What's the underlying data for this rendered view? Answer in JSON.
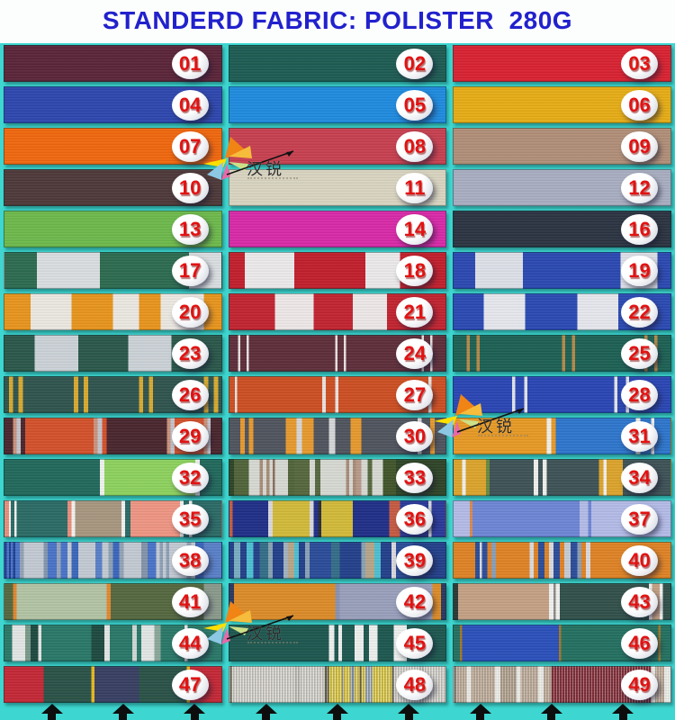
{
  "title": "STANDERD FABRIC: POLISTER  280G",
  "title_color": "#2121cd",
  "background_color": "#3ed6d0",
  "badge_number_color": "#e21212",
  "watermark": {
    "brand": "汉锐"
  },
  "bottom_arrows": {
    "count": 9,
    "color": "#0d0d0d"
  },
  "swatches": [
    {
      "num": "01",
      "desc": "dark-plum",
      "bg": "#5b2438"
    },
    {
      "num": "02",
      "desc": "dark-teal",
      "bg": "#1e5c53"
    },
    {
      "num": "03",
      "desc": "red",
      "bg": "#d92231"
    },
    {
      "num": "04",
      "desc": "royal-blue",
      "bg": "#2e47af"
    },
    {
      "num": "05",
      "desc": "bright-blue",
      "bg": "#1f8bdf"
    },
    {
      "num": "06",
      "desc": "golden-yellow",
      "bg": "#e6ad16"
    },
    {
      "num": "07",
      "desc": "orange",
      "bg": "#f1670e"
    },
    {
      "num": "08",
      "desc": "crimson",
      "bg": "#c74050"
    },
    {
      "num": "09",
      "desc": "tan",
      "bg": "#b18f78"
    },
    {
      "num": "10",
      "desc": "dark-brown",
      "bg": "#4e3939"
    },
    {
      "num": "11",
      "desc": "cream",
      "bg": "#d9d5c1"
    },
    {
      "num": "12",
      "desc": "silver-grey",
      "bg": "#a9aec1"
    },
    {
      "num": "13",
      "desc": "apple-green",
      "bg": "#6eb94c"
    },
    {
      "num": "14",
      "desc": "magenta",
      "bg": "#d92aa9"
    },
    {
      "num": "16",
      "desc": "dark-navy",
      "bg": "#2b3441"
    },
    {
      "num": "17",
      "desc": "green-white-blocks",
      "bg": "linear-gradient(90deg,#2c6b50 0 15%,#dadee0 15% 44%,#2c6b50 44% 85%,#dadee0 85% 100%)"
    },
    {
      "num": "18",
      "desc": "red-white-blocks",
      "bg": "linear-gradient(90deg,#c21f2c 0 7%,#eceaea 7% 30%,#c21f2c 30% 63%,#eceaea 63% 79%,#c21f2c 79% 100%)"
    },
    {
      "num": "19",
      "desc": "blue-white-blocks",
      "bg": "linear-gradient(90deg,#2b49b2 0 10%,#dde0e8 10% 32%,#2b49b2 32% 77%,#dde0e8 77% 94%,#2b49b2 94% 100%)"
    },
    {
      "num": "20",
      "desc": "orange-white-stripes",
      "bg": "linear-gradient(90deg,#e8951d 0 12%,#ece8e2 12% 31%,#e8951d 31% 50%,#ece8e2 50% 62%,#e8951d 62% 72%,#ece8e2 72% 92%,#e8951d 92% 100%)"
    },
    {
      "num": "21",
      "desc": "red-white-stripes",
      "bg": "linear-gradient(90deg,#c22430 0 21%,#eee8e8 21% 39%,#c22430 39% 57%,#eee8e8 57% 73%,#c22430 73% 100%)"
    },
    {
      "num": "22",
      "desc": "blue-white-stripes",
      "bg": "linear-gradient(90deg,#2b4ab4 0 14%,#e6e8ee 14% 33%,#2b4ab4 33% 57%,#e6e8ee 57% 76%,#2b4ab4 76% 100%)"
    },
    {
      "num": "23",
      "desc": "green-white-blocks",
      "bg": "linear-gradient(90deg,#2a574a 0 14%,#ccd3d8 14% 34%,#2a574a 34% 57%,#ccd3d8 57% 77%,#2a574a 77% 100%)"
    },
    {
      "num": "24",
      "desc": "maroon-white-pinstripes",
      "bg": "linear-gradient(90deg,#5e2e3a 0 4%,#e8e2e4 4% 5%,#5e2e3a 5% 8%,#e8e2e4 8% 9%,#5e2e3a 9% 49%,#e8e2e4 49% 50%,#5e2e3a 50% 53%,#e8e2e4 53% 54%,#5e2e3a 54% 89%,#e8e2e4 89% 90%,#5e2e3a 90% 93%,#e8e2e4 93% 94%,#5e2e3a 94% 100%)"
    },
    {
      "num": "25",
      "desc": "teal-gold-pinstripes",
      "bg": "linear-gradient(90deg,#1d6154 0 6%,#b68948 6% 7.5%,#1d6154 7.5% 10.5%,#b68948 10.5% 12%,#1d6154 12% 50%,#b68948 50% 51.5%,#1d6154 51.5% 54.5%,#b68948 54.5% 56%,#1d6154 56% 88%,#b68948 88% 89.5%,#1d6154 89.5% 92.5%,#b68948 92.5% 94%,#1d6154 94% 100%)"
    },
    {
      "num": "26",
      "desc": "pine-yellow-pinstripes",
      "bg": "linear-gradient(90deg,#2f544e 0 2%,#d8aa30 2% 4%,#2f544e 4% 6.5%,#d8aa30 6.5% 8.5%,#2f544e 8.5% 32%,#d8aa30 32% 34%,#2f544e 34% 36.5%,#d8aa30 36.5% 38.5%,#2f544e 38.5% 62%,#d8aa30 62% 64%,#2f544e 64% 66.5%,#d8aa30 66.5% 68.5%,#2f544e 68.5% 92%,#d8aa30 92% 94%,#2f544e 94% 96.5%,#d8aa30 96.5% 98.5%,#2f544e 98.5% 100%)"
    },
    {
      "num": "27",
      "desc": "rust-white-pinstripes",
      "bg": "linear-gradient(90deg,#cd4f23 0 2.5%,#e8e4e0 2.5% 3.5%,#cd4f23 3.5% 43%,#e8e4e0 43% 44.5%,#cd4f23 44.5% 49%,#e8e4e0 49% 50.5%,#cd4f23 50.5% 92%,#e8e4e0 92% 93.5%,#cd4f23 93.5% 100%)"
    },
    {
      "num": "28",
      "desc": "royal-blue-white-pinstripes",
      "bg": "linear-gradient(90deg,#2a46b4 0 27%,#e2e4ea 27% 28.5%,#2a46b4 28.5% 32.5%,#e2e4ea 32.5% 34%,#2a46b4 34% 74%,#e2e4ea 74% 75.5%,#2a46b4 75.5% 79.5%,#e2e4ea 79.5% 81%,#2a46b4 81% 100%)"
    },
    {
      "num": "29",
      "desc": "rust-maroon-blocks",
      "bg": "linear-gradient(90deg,#4a262e 0 4%,#c9937c 4% 5.5%,#c3c3cb 5.5% 7.5%,#4a262e 7.5% 9.5%,#d4512b 9.5% 41%,#c9937c 41% 43%,#c3c3cb 43% 45%,#d4512b 45% 47%,#4a262e 47% 75%,#c9937c 75% 76.5%,#c3c3cb 76.5% 78.5%,#d4512b 78.5% 92%,#c9937c 92% 93.5%,#c3c3cb 93.5% 95%,#4a262e 95% 100%)"
    },
    {
      "num": "30",
      "desc": "grey-orange-stripes",
      "bg": "linear-gradient(90deg,#50545e 0 5%,#e79a2e 5% 7%,#50545e 7% 9%,#e79a2e 9% 11%,#50545e 11% 26%,#e79a2e 26% 31%,#d6d6d8 31% 33.5%,#e79a2e 33.5% 39%,#50545e 39% 46%,#d6d6d8 46% 49%,#50545e 49% 56%,#e79a2e 56% 61%,#50545e 61% 87%,#d6d6d8 87% 89%,#50545e 89% 93%,#e79a2e 93% 95%,#50545e 95% 100%)"
    },
    {
      "num": "31",
      "desc": "orange-blue-blocks",
      "bg": "linear-gradient(90deg,#e89a25 0 43%,#f0f0ec 43% 45%,#e89a25 45% 47%,#2d76cc 47% 84%,#f0f0ec 84% 86%,#2d76cc 86% 91%,#f0f0ec 91% 92.5%,#2d76cc 92.5% 100%)"
    },
    {
      "num": "32",
      "desc": "teal-lime-blocks",
      "bg": "linear-gradient(90deg,#21695c 0 44%,#f0f2ee 44% 46%,#8ed25f 46% 88%,#f0f2ee 88% 90%,#21695c 90% 100%)"
    },
    {
      "num": "33",
      "desc": "olive-white-brown-stripes",
      "bg": "linear-gradient(90deg,#2e4427 0 2%,#51643a 2% 9%,#d7d9d3 9% 14%,#a98c79 14% 15.5%,#d7d9d3 15.5% 17%,#a98c79 17% 18.5%,#d7d9d3 18.5% 20%,#8a6e5e 20% 21%,#d7d9d3 21% 27%,#51643a 27% 30%,#56683e 30% 37%,#d7d9d3 37% 39.5%,#56683e 39.5% 42%,#d7d9d3 42% 54%,#a98c79 54% 55.5%,#d7d9d3 55.5% 57%,#a98c79 57% 58.5%,#b89a8a 58.5% 61%,#d7d9d3 61% 64%,#56683e 64% 66%,#d7d9d3 66% 71%,#41552b 71% 77%,#2e4427 77% 100%)"
    },
    {
      "num": "34",
      "desc": "slate-amber-stripes",
      "bg": "linear-gradient(90deg,#dca42c 0 4%,#f0f0ec 4% 5.5%,#dca42c 5.5% 15%,#6a8a40 15% 16.5%,#3e5256 16.5% 37%,#f0f0ec 37% 39%,#3e5256 39% 41%,#f0f0ec 41% 43%,#3e5256 43% 67%,#dca42c 67% 69%,#f0f0ec 69% 70.5%,#dca42c 70.5% 78%,#3e5256 78% 100%)"
    },
    {
      "num": "35",
      "desc": "teal-salmon-tan-blocks",
      "bg": "linear-gradient(90deg,#e98f7c 0 2%,#f2f2f0 2% 3%,#2b6a66 3% 4.5%,#f2f2f0 4.5% 5.5%,#2b6a66 5.5% 29%,#e98f7c 29% 31%,#f2f2f0 31% 32.5%,#a89780 32.5% 54%,#f2f2f0 54% 55.5%,#2b6a66 55.5% 58%,#ef9684 58% 81%,#f2f2f0 81% 82.5%,#2b6a66 82.5% 85%,#f2f2f0 85% 86.5%,#2b6a66 86.5% 100%)"
    },
    {
      "num": "36",
      "desc": "navy-yellow-blocks",
      "bg": "linear-gradient(90deg,#c65b42 0 1.5%,#202f88 1.5% 18%,#d8d8dc 18% 20%,#d3ba3a 20% 37%,#d8d8dc 37% 39%,#202f88 39% 41%,#2c2c34 41% 42.5%,#d3ba3a 42.5% 57%,#202f88 57% 74%,#c65b42 74% 79%,#2a3a9a 79% 92%,#d8d8dc 92% 93.5%,#2a3a9a 93.5% 100%)"
    },
    {
      "num": "37",
      "desc": "periwinkle-blocks",
      "bg": "linear-gradient(90deg,#b4bce8 0 7.5%,#d88a50 7.5% 8.7%,#6e86d6 8.7% 58%,#b4bce8 58% 62%,#6e86d6 62% 63.5%,#b4bce8 63.5% 100%)"
    },
    {
      "num": "38",
      "desc": "blue-grey-multistripe",
      "bg": "linear-gradient(90deg,#1f3f90 0 1%,#4a74c8 1% 2%,#1f3f90 2% 3%,#4a74c8 3% 4%,#1f3f90 4% 5%,#4a74c8 5% 7%,#94a2b6 7% 9%,#c3cad3 9% 18%,#8396ae 18% 20%,#4a74c8 20% 24%,#97a6ba 24% 26%,#4a74c8 26% 29%,#c3cad3 29% 31%,#3a66bc 31% 34%,#c3cad3 34% 42%,#5a80c8 42% 45%,#c3cad3 45% 48%,#8ea0b6 48% 50%,#3a66bc 50% 53%,#93a2b6 53% 55%,#c3cad3 55% 63%,#8494a8 63% 66%,#4a74c8 66% 70%,#c3cad3 70% 71.5%,#8ea0b6 71.5% 73%,#c3cad3 73% 74.5%,#8ea0b6 74.5% 76%,#c3cad3 76% 84%,#95a4b8 84% 86%,#c3cad3 86% 88%,#3a66bc 88% 92%,#5a80c8 92% 100%)"
    },
    {
      "num": "39",
      "desc": "navy-aqua-multistripe",
      "bg": "linear-gradient(90deg,#23408a 0 2%,#79aec2 2% 5%,#23408a 5% 8%,#4cc0d2 8% 11%,#23408a 11% 14%,#346e88 14% 18%,#88a2b2 18% 20%,#23408a 20% 25%,#a2b2be 25% 27%,#b6a68a 27% 30%,#4cc0d2 30% 32%,#23408a 32% 35%,#8aa2b6 35% 37%,#2b4c9a 37% 47%,#346e88 47% 51%,#23408a 51% 61%,#8aa2b6 61% 63%,#b6a68a 63% 67%,#4cc0d2 67% 70%,#23408a 70% 75%,#dadade 75% 77%,#2b4c9a 77% 85%,#23408a 85% 100%)"
    },
    {
      "num": "40",
      "desc": "orange-blue-multistripe",
      "bg": "linear-gradient(90deg,#df8326 0 10%,#2b4d9a 10% 12%,#dadade 12% 13%,#2b4d9a 13% 15.5%,#df8326 15.5% 17.5%,#8a9eb6 17.5% 19.5%,#df8326 19.5% 35%,#dadade 35% 37%,#df8326 37% 39%,#2b4d9a 39% 42%,#df8326 42% 44%,#dadade 44% 46%,#2b4d9a 46% 49%,#df8326 49% 51%,#c6ccd4 51% 54%,#2b4d9a 54% 57%,#8a9eb6 57% 59%,#df8326 59% 61%,#dadade 61% 63%,#df8326 63% 100%)"
    },
    {
      "num": "41",
      "desc": "olive-sage-blocks",
      "bg": "linear-gradient(90deg,#55683f 0 4%,#e08830 4% 5.5%,#b3c4a4 5.5% 47%,#e08830 47% 49%,#55683f 49% 92%,#8a9a8c 92% 100%)"
    },
    {
      "num": "42",
      "desc": "orange-greyblue-blocks",
      "bg": "linear-gradient(90deg,#2c3860 0 2%,#dd8c28 2% 49%,#8a92b0 49% 51%,#9aa0bc 51% 94%,#dd8c28 94% 98%,#2c3860 98% 100%)"
    },
    {
      "num": "43",
      "desc": "tan-darkteal-blocks",
      "bg": "linear-gradient(90deg,#2c3834 0 2%,#c4a185 2% 44%,#f0f0ee 44% 46%,#8a8a88 46% 47%,#f0f0ee 47% 49%,#31504a 49% 90%,#f0f0ee 90% 91.5%,#c4a185 91.5% 95%,#f0f0ee 95% 96.5%,#31504a 96.5% 100%)"
    },
    {
      "num": "44",
      "desc": "teal-white-stripes",
      "bg": "linear-gradient(90deg,#2a7868 0 3.5%,#e2e6e4 3.5% 9.5%,#7a9a8a 9.5% 12%,#1d4a40 12% 15.5%,#e2e6e4 15.5% 17%,#2a7868 17% 40%,#1d4a40 40% 46%,#e2e6e4 46% 48.5%,#2a7868 48.5% 59%,#cfd8d4 59% 61%,#2a7868 61% 63%,#e2e6e4 63% 69%,#8aa89a 69% 72%,#2a7868 72% 83%,#e2e6e4 83% 84.5%,#2a7868 84.5% 100%)"
    },
    {
      "num": "45",
      "desc": "darkteal-white-stripes",
      "bg": "linear-gradient(90deg,#1d5850 0 46%,#eef0ee 46% 48.5%,#1d5850 48.5% 50.5%,#eef0ee 50.5% 52%,#1d5850 52% 58%,#eef0ee 58% 62%,#1d5850 62% 64.5%,#eef0ee 64.5% 68.5%,#1d5850 68.5% 76%,#eef0ee 76% 82%,#1d5850 82% 100%)"
    },
    {
      "num": "46",
      "desc": "blue-teal-blocks",
      "bg": "linear-gradient(90deg,#247060 0 3%,#a07828 3% 4%,#2b50bb 4% 48.5%,#a07828 48.5% 49.5%,#247060 49.5% 94.5%,#a07828 94.5% 95.5%,#247060 95.5% 100%)"
    },
    {
      "num": "47",
      "desc": "red-green-navy-blocks",
      "bg": "linear-gradient(90deg,#c42836 0 18%,#2a5248 18% 40%,#e8b820 40% 41.5%,#383f63 41.5% 62%,#2a5248 62% 84%,#e8b820 84% 85.5%,#c42836 85.5% 100%)"
    },
    {
      "num": "48",
      "desc": "grey-yellow-pinstripes",
      "bg": "repeating-linear-gradient(90deg,rgba(255,255,255,.5) 0 1px,rgba(120,120,110,.25) 1px 2px,rgba(255,255,255,0) 2px 3px),linear-gradient(90deg,#55503c 0 1%,#cbc9c2 1% 30%,#b8b6ae 30% 33%,#cbc9c2 33% 44%,#55503c 44% 46%,#d2bd32 46% 52%,#8a8868 52% 53%,#d2bd32 53% 56%,#7a88a0 56% 58%,#d2bd32 58% 60%,#55503c 60% 61%,#d2bd32 61% 63%,#8a98a8 63% 66%,#d2bd32 66% 75%,#55503c 75% 76%,#cbc9c2 76% 88%,#b8b6ae 88% 90%,#cbc9c2 90% 100%)"
    },
    {
      "num": "49",
      "desc": "tan-maroon-pinstripes",
      "bg": "repeating-linear-gradient(90deg,rgba(255,255,255,.35) 0 1px,rgba(0,0,0,0) 1px 3px),linear-gradient(90deg,#6a6a66 0 1%,#b2a08e 1% 6%,#e6e6e2 6% 8%,#b2a08e 8% 19%,#e6e6e2 19% 21.5%,#a59583 21.5% 29%,#e6e6e2 29% 31%,#b2a08e 31% 39%,#e6e6e2 39% 41.5%,#b2a08e 41.5% 45%,#7a2a34 45% 91%,#e6e6e2 91% 93%,#b2a08e 93% 97%,#e6e6e2 97% 100%)"
    }
  ]
}
